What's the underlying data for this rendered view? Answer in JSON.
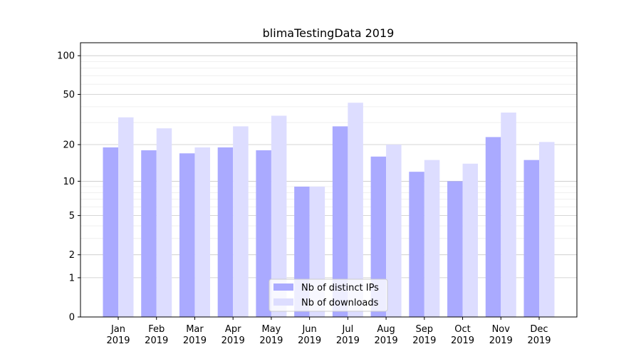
{
  "chart_data": {
    "type": "bar",
    "title": "blimaTestingData 2019",
    "xlabel": "",
    "ylabel": "",
    "yscale": "log(x+1)",
    "ylim": [
      0,
      126
    ],
    "yticks": [
      0,
      1,
      2,
      5,
      10,
      20,
      50,
      100
    ],
    "grid": true,
    "legend_placement": "bottom-center",
    "categories": [
      "Jan\n2019",
      "Feb\n2019",
      "Mar\n2019",
      "Apr\n2019",
      "May\n2019",
      "Jun\n2019",
      "Jul\n2019",
      "Aug\n2019",
      "Sep\n2019",
      "Oct\n2019",
      "Nov\n2019",
      "Dec\n2019"
    ],
    "series": [
      {
        "name": "Nb of distinct IPs",
        "color": "#aaaaff",
        "values": [
          19,
          18,
          17,
          19,
          18,
          9,
          28,
          16,
          12,
          10,
          23,
          15
        ]
      },
      {
        "name": "Nb of downloads",
        "color": "#ddddff",
        "values": [
          33,
          27,
          19,
          28,
          34,
          9,
          43,
          20,
          15,
          14,
          36,
          21
        ]
      }
    ]
  }
}
